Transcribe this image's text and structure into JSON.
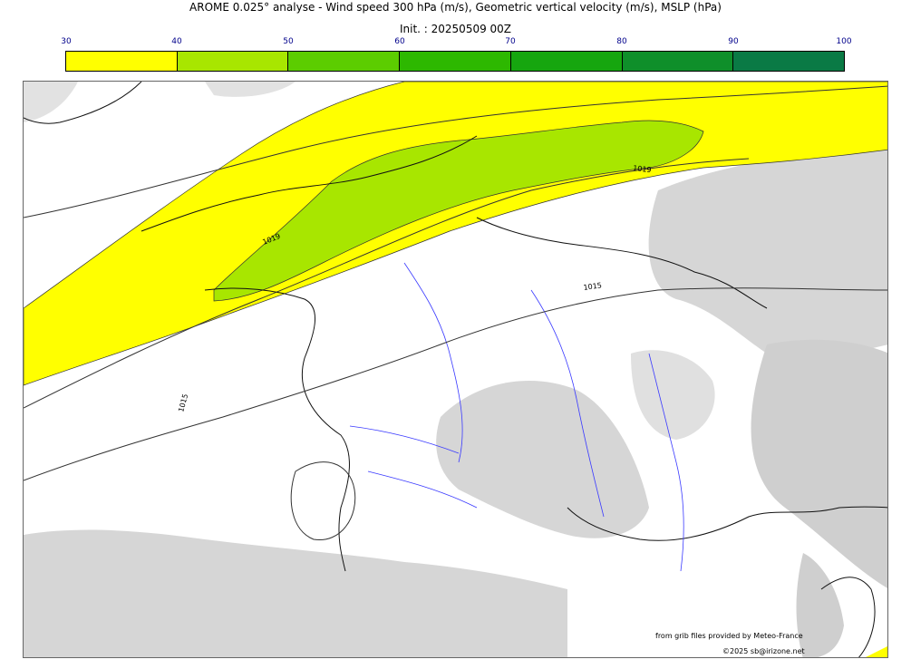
{
  "header": {
    "title": "AROME 0.025° analyse - Wind speed 300 hPa (m/s), Geometric vertical velocity (m/s), MSLP (hPa)",
    "init": "Init. : 20250509 00Z"
  },
  "colorbar": {
    "ticks": [
      "30",
      "40",
      "50",
      "60",
      "70",
      "80",
      "90",
      "100"
    ],
    "colors": [
      "#ffff00",
      "#a8e600",
      "#5ccd00",
      "#2db800",
      "#16a60f",
      "#00a11a",
      "#008040",
      "#007850"
    ]
  },
  "isobars": {
    "labels": [
      "1019",
      "1019",
      "1015",
      "1015"
    ]
  },
  "credits": {
    "source": "from grib files provided by Meteo-France",
    "copyright": "©2025 sb@irizone.net"
  },
  "legend_colors": {
    "wind_40_50": "#a8e600",
    "wind_30_40": "#ffff00",
    "terrain": "#d8d8d8",
    "rivers": "#3a3aff",
    "coast": "#222222"
  }
}
